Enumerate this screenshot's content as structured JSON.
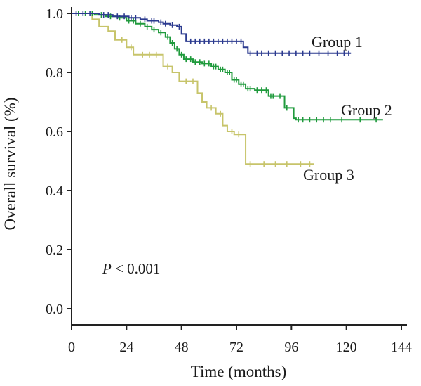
{
  "chart_data": {
    "type": "line",
    "subtype": "kaplan-meier",
    "title": "",
    "xlabel": "Time (months)",
    "ylabel": "Overall survival (%)",
    "xlim": [
      0,
      144
    ],
    "ylim": [
      0,
      1.0
    ],
    "xticks": [
      0,
      24,
      48,
      72,
      96,
      120,
      144
    ],
    "yticks": [
      0.0,
      0.2,
      0.4,
      0.6,
      0.8,
      1.0
    ],
    "xtick_labels": [
      "0",
      "24",
      "48",
      "72",
      "96",
      "120",
      "144"
    ],
    "ytick_labels": [
      "0.0",
      "0.2",
      "0.4",
      "0.6",
      "0.8",
      "1.0"
    ],
    "grid": false,
    "annotation": {
      "prefix": "P",
      "text": " < 0.001"
    },
    "series": [
      {
        "name": "Group 1",
        "color": "#2b3a8f",
        "steps": [
          [
            0,
            1.0
          ],
          [
            12,
            0.995
          ],
          [
            18,
            0.99
          ],
          [
            25,
            0.985
          ],
          [
            30,
            0.98
          ],
          [
            33,
            0.975
          ],
          [
            38,
            0.97
          ],
          [
            40,
            0.965
          ],
          [
            43,
            0.96
          ],
          [
            46,
            0.955
          ],
          [
            48,
            0.93
          ],
          [
            50,
            0.905
          ],
          [
            55,
            0.905
          ],
          [
            60,
            0.905
          ],
          [
            65,
            0.905
          ],
          [
            70,
            0.905
          ],
          [
            73,
            0.905
          ],
          [
            75,
            0.885
          ],
          [
            77,
            0.865
          ],
          [
            80,
            0.865
          ],
          [
            90,
            0.865
          ],
          [
            100,
            0.865
          ],
          [
            110,
            0.865
          ],
          [
            122,
            0.865
          ]
        ],
        "censored": [
          2,
          5,
          8,
          14,
          16,
          20,
          23,
          26,
          28,
          32,
          35,
          36,
          39,
          41,
          44,
          47,
          52,
          54,
          56,
          58,
          60,
          62,
          64,
          66,
          68,
          70,
          72,
          74,
          78,
          81,
          83,
          86,
          89,
          92,
          95,
          98,
          101,
          104,
          108,
          112,
          116,
          119,
          121
        ]
      },
      {
        "name": "Group 2",
        "color": "#1f9a3c",
        "steps": [
          [
            0,
            1.0
          ],
          [
            10,
            0.995
          ],
          [
            15,
            0.99
          ],
          [
            20,
            0.985
          ],
          [
            24,
            0.975
          ],
          [
            28,
            0.965
          ],
          [
            32,
            0.955
          ],
          [
            35,
            0.945
          ],
          [
            38,
            0.935
          ],
          [
            41,
            0.92
          ],
          [
            43,
            0.9
          ],
          [
            45,
            0.88
          ],
          [
            47,
            0.86
          ],
          [
            49,
            0.845
          ],
          [
            53,
            0.835
          ],
          [
            57,
            0.83
          ],
          [
            61,
            0.82
          ],
          [
            64,
            0.81
          ],
          [
            67,
            0.8
          ],
          [
            70,
            0.775
          ],
          [
            73,
            0.76
          ],
          [
            76,
            0.745
          ],
          [
            80,
            0.74
          ],
          [
            86,
            0.72
          ],
          [
            90,
            0.72
          ],
          [
            93,
            0.68
          ],
          [
            97,
            0.645
          ],
          [
            98,
            0.64
          ],
          [
            110,
            0.64
          ],
          [
            125,
            0.64
          ],
          [
            136,
            0.64
          ]
        ],
        "censored": [
          3,
          6,
          9,
          13,
          17,
          21,
          25,
          27,
          30,
          33,
          36,
          39,
          42,
          44,
          46,
          48,
          50,
          52,
          54,
          56,
          58,
          60,
          62,
          63,
          65,
          66,
          68,
          69,
          71,
          72,
          74,
          75,
          77,
          78,
          81,
          83,
          85,
          87,
          88,
          91,
          94,
          99,
          101,
          104,
          107,
          110,
          113,
          118,
          126,
          133
        ]
      },
      {
        "name": "Group 3",
        "color": "#c7c46a",
        "steps": [
          [
            0,
            1.0
          ],
          [
            9,
            0.98
          ],
          [
            12,
            0.955
          ],
          [
            16,
            0.94
          ],
          [
            19,
            0.91
          ],
          [
            24,
            0.885
          ],
          [
            27,
            0.86
          ],
          [
            40,
            0.82
          ],
          [
            44,
            0.8
          ],
          [
            47,
            0.77
          ],
          [
            55,
            0.73
          ],
          [
            57,
            0.7
          ],
          [
            59,
            0.68
          ],
          [
            63,
            0.66
          ],
          [
            66,
            0.62
          ],
          [
            68,
            0.6
          ],
          [
            71,
            0.59
          ],
          [
            75,
            0.59
          ],
          [
            76,
            0.49
          ],
          [
            80,
            0.49
          ],
          [
            90,
            0.49
          ],
          [
            106,
            0.49
          ]
        ],
        "censored": [
          22,
          26,
          31,
          34,
          37,
          42,
          50,
          53,
          61,
          65,
          70,
          73,
          78,
          84,
          89,
          94,
          100,
          104
        ]
      }
    ]
  }
}
